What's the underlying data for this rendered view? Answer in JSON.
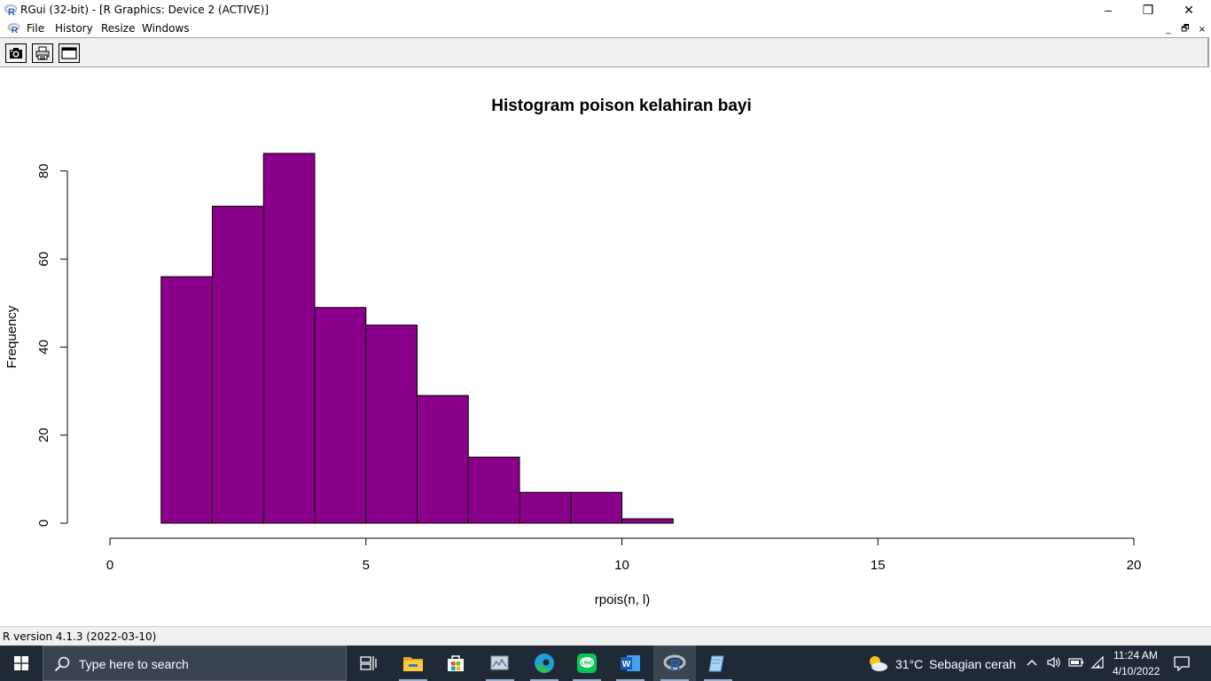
{
  "window": {
    "title": "RGui (32-bit) - [R Graphics: Device 2 (ACTIVE)]",
    "minimize": "–",
    "restore": "❐",
    "close": "✕"
  },
  "menu": {
    "items": [
      "File",
      "History",
      "Resize",
      "Windows"
    ],
    "mdi_buttons": [
      "_",
      "🗗",
      "×"
    ]
  },
  "toolbar": {
    "buttons": [
      "camera-icon",
      "printer-icon",
      "window-icon"
    ]
  },
  "chart_data": {
    "type": "bar",
    "title": "Histogram poison kelahiran bayi",
    "xlabel": "rpois(n, l)",
    "ylabel": "Frequency",
    "bins": [
      {
        "from": 1,
        "to": 2,
        "count": 56
      },
      {
        "from": 2,
        "to": 3,
        "count": 72
      },
      {
        "from": 3,
        "to": 4,
        "count": 84
      },
      {
        "from": 4,
        "to": 5,
        "count": 49
      },
      {
        "from": 5,
        "to": 6,
        "count": 45
      },
      {
        "from": 6,
        "to": 7,
        "count": 29
      },
      {
        "from": 7,
        "to": 8,
        "count": 15
      },
      {
        "from": 8,
        "to": 9,
        "count": 7
      },
      {
        "from": 9,
        "to": 10,
        "count": 7
      },
      {
        "from": 10,
        "to": 11,
        "count": 1
      }
    ],
    "xlim": [
      0,
      20
    ],
    "ylim": [
      0,
      84
    ],
    "xticks": [
      "0",
      "5",
      "10",
      "15",
      "20"
    ],
    "yticks": [
      "0",
      "20",
      "40",
      "60",
      "80"
    ],
    "bar_color": "#8B008B",
    "grid": false
  },
  "status": {
    "text": "R version 4.1.3 (2022-03-10)"
  },
  "taskbar": {
    "search_placeholder": "Type here to search",
    "weather_temp": "31°C",
    "weather_desc": "Sebagian cerah",
    "time": "11:24 AM",
    "date": "4/10/2022",
    "apps": [
      "task-view-icon",
      "file-explorer-icon",
      "microsoft-store-icon",
      "photos-icon",
      "edge-icon",
      "line-icon",
      "word-icon",
      "r-gui-icon",
      "notepad-icon"
    ]
  }
}
